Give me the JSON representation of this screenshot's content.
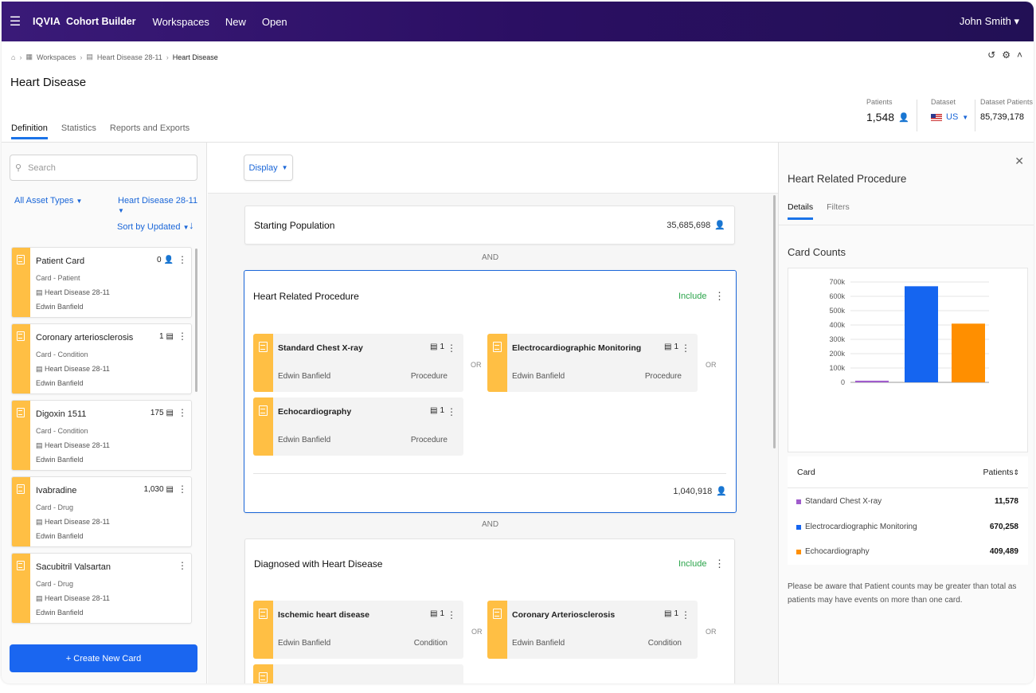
{
  "topbar": {
    "menu_icon": "hamburger-icon",
    "brand": "IQVIA",
    "app_name": "Cohort Builder",
    "nav": [
      "Workspaces",
      "New",
      "Open"
    ],
    "user": "John Smith ▾"
  },
  "breadcrumb": {
    "items": [
      "Workspaces",
      "Heart Disease 28-11",
      "Heart Disease"
    ]
  },
  "page_title": "Heart Disease",
  "tabs": [
    "Definition",
    "Statistics",
    "Reports and Exports"
  ],
  "stats": {
    "patients_label": "Patients",
    "patients_value": "1,548",
    "dataset_label": "Dataset",
    "dataset_value": "US",
    "dataset_patients_label": "Dataset Patients",
    "dataset_patients_value": "85,739,178"
  },
  "left": {
    "search_placeholder": "Search",
    "filter_types": "All Asset Types",
    "filter_workspace": "Heart Disease 28-11",
    "sort": "Sort by Updated",
    "cards": [
      {
        "name": "Patient Card",
        "type": "Card - Patient",
        "workspace": "Heart Disease 28-11",
        "owner": "Edwin Banfield",
        "count": "0",
        "count_icon": "person-icon"
      },
      {
        "name": "Coronary arteriosclerosis",
        "type": "Card - Condition",
        "workspace": "Heart Disease 28-11",
        "owner": "Edwin Banfield",
        "count": "1",
        "count_icon": "list-icon"
      },
      {
        "name": "Digoxin 1511",
        "type": "Card - Condition",
        "workspace": "Heart Disease 28-11",
        "owner": "Edwin Banfield",
        "count": "175",
        "count_icon": "list-icon"
      },
      {
        "name": "Ivabradine",
        "type": "Card - Drug",
        "workspace": "Heart Disease 28-11",
        "owner": "Edwin Banfield",
        "count": "1,030",
        "count_icon": "list-icon"
      },
      {
        "name": "Sacubitril Valsartan",
        "type": "Card - Drug",
        "workspace": "Heart Disease 28-11",
        "owner": "Edwin Banfield",
        "count": "",
        "count_icon": ""
      }
    ],
    "create_button": "+ Create New Card"
  },
  "center": {
    "display_button": "Display",
    "starting_population": {
      "title": "Starting Population",
      "count": "35,685,698"
    },
    "and_label": "AND",
    "or_label": "OR",
    "block1": {
      "title": "Heart Related Procedure",
      "include": "Include",
      "count": "1,040,918",
      "cards": [
        {
          "name": "Standard Chest X-ray",
          "owner": "Edwin Banfield",
          "type": "Procedure",
          "count": "1"
        },
        {
          "name": "Electrocardiographic Monitoring",
          "owner": "Edwin Banfield",
          "type": "Procedure",
          "count": "1"
        },
        {
          "name": "Echocardiography",
          "owner": "Edwin Banfield",
          "type": "Procedure",
          "count": "1"
        }
      ]
    },
    "block2": {
      "title": "Diagnosed with Heart Disease",
      "include": "Include",
      "cards": [
        {
          "name": "Ischemic heart disease",
          "owner": "Edwin Banfield",
          "type": "Condition",
          "count": "1"
        },
        {
          "name": "Coronary Arteriosclerosis",
          "owner": "Edwin Banfield",
          "type": "Condition",
          "count": "1"
        }
      ]
    }
  },
  "right": {
    "title": "Heart Related Procedure",
    "tabs": [
      "Details",
      "Filters"
    ],
    "card_counts_label": "Card Counts",
    "table_header": {
      "card": "Card",
      "patients": "Patients"
    },
    "note": "Please be aware that Patient counts may be greater than total as patients may have events on more than one card."
  },
  "chart_data": {
    "type": "bar",
    "categories": [
      "Standard Chest X-ray",
      "Electrocardiographic Monitoring",
      "Echocardiography"
    ],
    "values": [
      11578,
      670258,
      409489
    ],
    "colors": [
      "#a05ccc",
      "#1565f0",
      "#ff8f00"
    ],
    "value_labels": [
      "11,578",
      "670,258",
      "409,489"
    ],
    "yticks": [
      "0",
      "100k",
      "200k",
      "300k",
      "400k",
      "500k",
      "600k",
      "700k"
    ],
    "ylim": [
      0,
      700000
    ],
    "grid": true,
    "legend": "none"
  }
}
